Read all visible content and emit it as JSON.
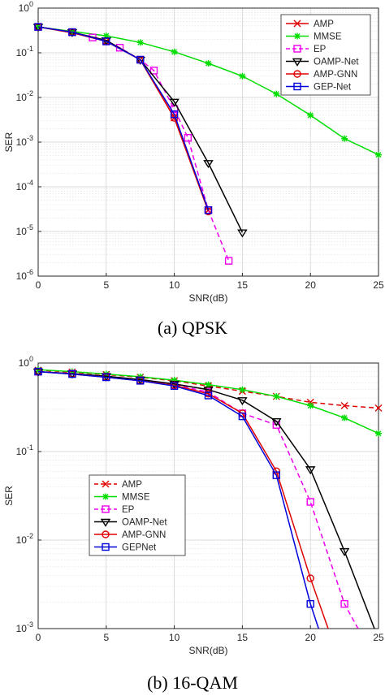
{
  "chart_data": [
    {
      "type": "line",
      "caption": "(a) QPSK",
      "xlabel": "SNR(dB)",
      "ylabel": "SER",
      "x_ticks": [
        0,
        5,
        10,
        15,
        20,
        25
      ],
      "y_scale": "log",
      "y_ticks": [
        "10^-6",
        "10^-5",
        "10^-4",
        "10^-3",
        "10^-2",
        "10^-1",
        "10^0"
      ],
      "xlim": [
        0,
        25
      ],
      "ylim": [
        1e-06,
        1
      ],
      "grid": true,
      "legend_position": "top-right",
      "series": [
        {
          "name": "AMP",
          "color": "#e00000",
          "dash": "solid",
          "marker": "x",
          "x": [
            0,
            2.5,
            5,
            7.5,
            10,
            12.5
          ],
          "y": [
            0.38,
            0.28,
            0.18,
            0.07,
            0.0035,
            3e-05
          ]
        },
        {
          "name": "MMSE",
          "color": "#00dd00",
          "dash": "solid",
          "marker": "star",
          "x": [
            0,
            2.5,
            5,
            7.5,
            10,
            12.5,
            15,
            17.5,
            20,
            22.5,
            25
          ],
          "y": [
            0.38,
            0.3,
            0.24,
            0.17,
            0.105,
            0.058,
            0.03,
            0.012,
            0.004,
            0.0012,
            0.00052
          ]
        },
        {
          "name": "EP",
          "color": "#ee00ee",
          "dash": "dashed",
          "marker": "square",
          "x": [
            0,
            2.5,
            4,
            5,
            6,
            7.5,
            8.5,
            10,
            11,
            12.5,
            14
          ],
          "y": [
            0.38,
            0.29,
            0.22,
            0.18,
            0.13,
            0.07,
            0.04,
            0.0055,
            0.00125,
            3e-05,
            2.2e-06
          ]
        },
        {
          "name": "OAMP-Net",
          "color": "#000000",
          "dash": "solid",
          "marker": "triangle-down",
          "x": [
            0,
            2.5,
            5,
            7.5,
            10,
            12.5,
            15
          ],
          "y": [
            0.38,
            0.29,
            0.19,
            0.07,
            0.008,
            0.00034,
            9.5e-06
          ]
        },
        {
          "name": "AMP-GNN",
          "color": "#e00000",
          "dash": "solid",
          "marker": "circle",
          "x": [
            0,
            2.5,
            5,
            7.5,
            10,
            12.5
          ],
          "y": [
            0.38,
            0.29,
            0.18,
            0.07,
            0.0035,
            2.8e-05
          ]
        },
        {
          "name": "GEP-Net",
          "color": "#0000dd",
          "dash": "solid",
          "marker": "square",
          "x": [
            0,
            2.5,
            5,
            7.5,
            10,
            12.5
          ],
          "y": [
            0.38,
            0.29,
            0.18,
            0.07,
            0.0042,
            3e-05
          ]
        }
      ]
    },
    {
      "type": "line",
      "caption": "(b) 16-QAM",
      "xlabel": "SNR(dB)",
      "ylabel": "SER",
      "x_ticks": [
        0,
        5,
        10,
        15,
        20,
        25
      ],
      "y_scale": "log",
      "y_ticks": [
        "10^-3",
        "10^-2",
        "10^-1",
        "10^0"
      ],
      "xlim": [
        0,
        25
      ],
      "ylim": [
        0.001,
        1
      ],
      "grid": true,
      "legend_position": "bottom-left",
      "series": [
        {
          "name": "AMP",
          "color": "#e00000",
          "dash": "dashed",
          "marker": "x",
          "x": [
            0,
            2.5,
            5,
            7.5,
            10,
            12.5,
            15,
            17.5,
            20,
            22.5,
            25
          ],
          "y": [
            0.83,
            0.79,
            0.74,
            0.69,
            0.63,
            0.55,
            0.48,
            0.42,
            0.36,
            0.33,
            0.31
          ]
        },
        {
          "name": "MMSE",
          "color": "#00dd00",
          "dash": "solid",
          "marker": "star",
          "x": [
            0,
            2.5,
            5,
            7.5,
            10,
            12.5,
            15,
            17.5,
            20,
            22.5,
            25
          ],
          "y": [
            0.84,
            0.8,
            0.75,
            0.7,
            0.64,
            0.57,
            0.5,
            0.42,
            0.33,
            0.24,
            0.16
          ]
        },
        {
          "name": "EP",
          "color": "#ee00ee",
          "dash": "dashed",
          "marker": "square",
          "x": [
            0,
            2.5,
            5,
            7.5,
            10,
            12.5,
            15,
            17.5,
            20,
            22.5,
            23.5
          ],
          "y": [
            0.8,
            0.76,
            0.7,
            0.64,
            0.57,
            0.47,
            0.27,
            0.2,
            0.027,
            0.0019,
            0.001
          ]
        },
        {
          "name": "OAMP-Net",
          "color": "#000000",
          "dash": "solid",
          "marker": "triangle-down",
          "x": [
            0,
            2.5,
            5,
            7.5,
            10,
            12.5,
            15,
            17.5,
            20,
            22.5,
            24.7
          ],
          "y": [
            0.8,
            0.76,
            0.71,
            0.65,
            0.58,
            0.5,
            0.38,
            0.22,
            0.063,
            0.0075,
            0.001
          ]
        },
        {
          "name": "AMP-GNN",
          "color": "#e00000",
          "dash": "solid",
          "marker": "circle",
          "x": [
            0,
            2.5,
            5,
            7.5,
            10,
            12.5,
            15,
            17.5,
            20,
            21.3
          ],
          "y": [
            0.8,
            0.75,
            0.69,
            0.63,
            0.56,
            0.45,
            0.27,
            0.06,
            0.0037,
            0.001
          ]
        },
        {
          "name": "GEPNet",
          "color": "#0000dd",
          "dash": "solid",
          "marker": "square",
          "x": [
            0,
            2.5,
            5,
            7.5,
            10,
            12.5,
            15,
            17.5,
            20,
            20.6
          ],
          "y": [
            0.8,
            0.75,
            0.69,
            0.63,
            0.55,
            0.43,
            0.25,
            0.054,
            0.0019,
            0.001
          ]
        }
      ]
    }
  ]
}
